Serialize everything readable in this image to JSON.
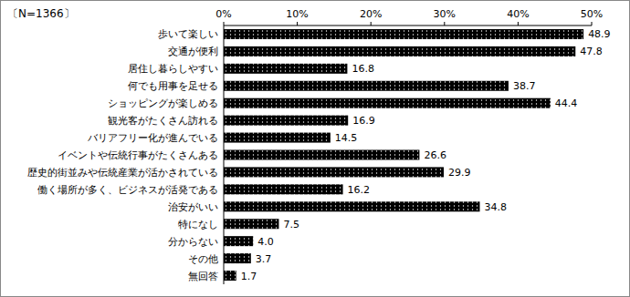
{
  "chart_data": {
    "type": "bar",
    "orientation": "horizontal",
    "subtitle": "〔N=1366〕",
    "categories": [
      "歩いて楽しい",
      "交通が便利",
      "居住し暮らしやすい",
      "何でも用事を足せる",
      "ショッピングが楽しめる",
      "観光客がたくさん訪れる",
      "バリアフリー化が進んでいる",
      "イベントや伝統行事がたくさんある",
      "歴史的街並みや伝統産業が活かされている",
      "働く場所が多く、ビジネスが活発である",
      "治安がいい",
      "特になし",
      "分からない",
      "その他",
      "無回答"
    ],
    "values": [
      48.9,
      47.8,
      16.8,
      38.7,
      44.4,
      16.9,
      14.5,
      26.6,
      29.9,
      16.2,
      34.8,
      7.5,
      4.0,
      3.7,
      1.7
    ],
    "value_labels": [
      "48.9",
      "47.8",
      "16.8",
      "38.7",
      "44.4",
      "16.9",
      "14.5",
      "26.6",
      "29.9",
      "16.2",
      "34.8",
      "7.5",
      "4.0",
      "3.7",
      "1.7"
    ],
    "color": "#000000",
    "xlim": [
      0,
      50
    ],
    "xticks": [
      {
        "value": 0,
        "label": "0%"
      },
      {
        "value": 10,
        "label": "10%"
      },
      {
        "value": 20,
        "label": "20%"
      },
      {
        "value": 30,
        "label": "30%"
      },
      {
        "value": 40,
        "label": "40%"
      },
      {
        "value": 50,
        "label": "50%"
      }
    ],
    "grid": false,
    "data_labels": true
  }
}
